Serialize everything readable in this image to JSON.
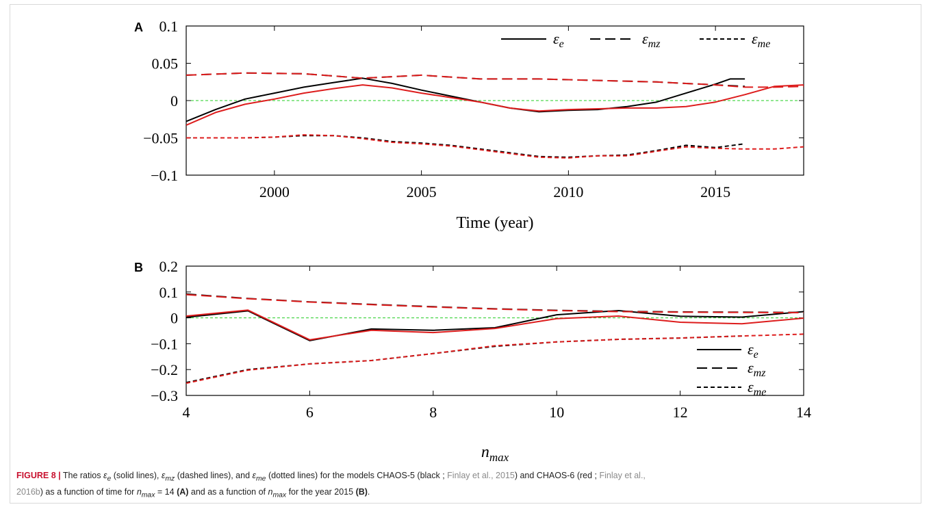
{
  "colors": {
    "chaos5": "#000000",
    "chaos6": "#dd1c1c",
    "zero_line": "#22cc22",
    "figure_label": "#c8102e",
    "reference": "#8a8a8a"
  },
  "chart_data": [
    {
      "panel": "A",
      "type": "line",
      "xlabel": "Time (year)",
      "ylabel": "",
      "xlim": [
        1997,
        2018
      ],
      "ylim": [
        -0.1,
        0.1
      ],
      "xticks": [
        2000,
        2005,
        2010,
        2015
      ],
      "yticks": [
        0.1,
        0.05,
        0,
        -0.05,
        -0.1
      ],
      "ytick_labels": [
        "0.1",
        "0.05",
        "0",
        "−0.05",
        "−0.1"
      ],
      "legend_position": "top-right",
      "legend": [
        "ε_e",
        "ε_mz",
        "ε_me"
      ],
      "reference_line": 0,
      "series": [
        {
          "model": "CHAOS-5",
          "kind": "solid",
          "color": "#000000",
          "x": [
            1997,
            1998,
            1999,
            2000,
            2001,
            2002,
            2003,
            2004,
            2005,
            2006,
            2007,
            2008,
            2009,
            2010,
            2011,
            2012,
            2013,
            2014,
            2015,
            2015.5,
            2016
          ],
          "y": [
            -0.028,
            -0.012,
            0.002,
            0.01,
            0.018,
            0.024,
            0.03,
            0.023,
            0.014,
            0.006,
            -0.002,
            -0.01,
            -0.015,
            -0.013,
            -0.012,
            -0.008,
            -0.002,
            0.01,
            0.022,
            0.029,
            0.029
          ]
        },
        {
          "model": "CHAOS-6",
          "kind": "solid",
          "color": "#dd1c1c",
          "x": [
            1997,
            1998,
            1999,
            2000,
            2001,
            2002,
            2003,
            2004,
            2005,
            2006,
            2007,
            2008,
            2009,
            2010,
            2011,
            2012,
            2013,
            2014,
            2015,
            2016,
            2017,
            2018
          ],
          "y": [
            -0.033,
            -0.016,
            -0.005,
            0.002,
            0.01,
            0.016,
            0.021,
            0.017,
            0.01,
            0.004,
            -0.002,
            -0.01,
            -0.014,
            -0.012,
            -0.011,
            -0.01,
            -0.01,
            -0.008,
            -0.002,
            0.008,
            0.019,
            0.021
          ]
        },
        {
          "model": "CHAOS-5",
          "kind": "dashed",
          "color": "#000000",
          "x": [
            1997,
            1999,
            2001,
            2003,
            2005,
            2007,
            2009,
            2011,
            2013,
            2015,
            2016
          ],
          "y": [
            0.034,
            0.037,
            0.036,
            0.03,
            0.034,
            0.029,
            0.029,
            0.027,
            0.025,
            0.021,
            0.019
          ]
        },
        {
          "model": "CHAOS-6",
          "kind": "dashed",
          "color": "#dd1c1c",
          "x": [
            1997,
            1999,
            2001,
            2003,
            2005,
            2007,
            2009,
            2011,
            2013,
            2015,
            2016,
            2017,
            2018
          ],
          "y": [
            0.034,
            0.037,
            0.036,
            0.03,
            0.034,
            0.029,
            0.029,
            0.027,
            0.025,
            0.021,
            0.018,
            0.018,
            0.019
          ]
        },
        {
          "model": "CHAOS-5",
          "kind": "dotted",
          "color": "#000000",
          "x": [
            1997,
            1999,
            2000,
            2001,
            2002,
            2003,
            2004,
            2005,
            2006,
            2007,
            2008,
            2009,
            2010,
            2011,
            2012,
            2013,
            2014,
            2015,
            2016
          ],
          "y": [
            -0.05,
            -0.05,
            -0.049,
            -0.047,
            -0.047,
            -0.05,
            -0.055,
            -0.057,
            -0.06,
            -0.065,
            -0.07,
            -0.075,
            -0.076,
            -0.074,
            -0.073,
            -0.067,
            -0.06,
            -0.063,
            -0.058
          ]
        },
        {
          "model": "CHAOS-6",
          "kind": "dotted",
          "color": "#dd1c1c",
          "x": [
            1997,
            1999,
            2000,
            2001,
            2002,
            2003,
            2004,
            2005,
            2006,
            2007,
            2008,
            2009,
            2010,
            2011,
            2012,
            2013,
            2014,
            2015,
            2016,
            2017,
            2018
          ],
          "y": [
            -0.05,
            -0.05,
            -0.049,
            -0.046,
            -0.047,
            -0.051,
            -0.056,
            -0.058,
            -0.061,
            -0.066,
            -0.071,
            -0.076,
            -0.077,
            -0.074,
            -0.074,
            -0.068,
            -0.062,
            -0.064,
            -0.065,
            -0.065,
            -0.062
          ]
        }
      ]
    },
    {
      "panel": "B",
      "type": "line",
      "xlabel": "n_max",
      "ylabel": "",
      "xlim": [
        4,
        14
      ],
      "ylim": [
        -0.3,
        0.2
      ],
      "xticks": [
        4,
        6,
        8,
        10,
        12,
        14
      ],
      "yticks": [
        0.2,
        0.1,
        0,
        -0.1,
        -0.2,
        -0.3
      ],
      "ytick_labels": [
        "0.2",
        "0.1",
        "0",
        "−0.1",
        "−0.2",
        "−0.3"
      ],
      "legend_position": "bottom-right",
      "legend": [
        "ε_e",
        "ε_mz",
        "ε_me"
      ],
      "reference_line": 0,
      "series": [
        {
          "model": "CHAOS-5",
          "kind": "solid",
          "color": "#000000",
          "x": [
            4,
            5,
            6,
            7,
            8,
            9,
            10,
            11,
            12,
            13,
            14
          ],
          "y": [
            0.002,
            0.027,
            -0.088,
            -0.043,
            -0.048,
            -0.038,
            0.012,
            0.028,
            0.006,
            0.003,
            0.024
          ]
        },
        {
          "model": "CHAOS-6",
          "kind": "solid",
          "color": "#dd1c1c",
          "x": [
            4,
            5,
            6,
            7,
            8,
            9,
            10,
            11,
            12,
            13,
            14
          ],
          "y": [
            0.007,
            0.03,
            -0.085,
            -0.048,
            -0.057,
            -0.041,
            -0.003,
            0.007,
            -0.017,
            -0.023,
            -0.001
          ]
        },
        {
          "model": "CHAOS-5",
          "kind": "dashed",
          "color": "#000000",
          "x": [
            4,
            5,
            6,
            7,
            8,
            9,
            10,
            11,
            12,
            13,
            14
          ],
          "y": [
            0.092,
            0.075,
            0.062,
            0.052,
            0.043,
            0.035,
            0.029,
            0.025,
            0.023,
            0.022,
            0.021
          ]
        },
        {
          "model": "CHAOS-6",
          "kind": "dashed",
          "color": "#dd1c1c",
          "x": [
            4,
            5,
            6,
            7,
            8,
            9,
            10,
            11,
            12,
            13,
            14
          ],
          "y": [
            0.09,
            0.074,
            0.061,
            0.051,
            0.042,
            0.034,
            0.028,
            0.024,
            0.022,
            0.021,
            0.02
          ]
        },
        {
          "model": "CHAOS-5",
          "kind": "dotted",
          "color": "#000000",
          "x": [
            4,
            5,
            6,
            7,
            8,
            9,
            10,
            11,
            12,
            13
          ],
          "y": [
            -0.25,
            -0.2,
            -0.178,
            -0.165,
            -0.138,
            -0.11,
            -0.093,
            -0.083,
            -0.078,
            -0.07
          ]
        },
        {
          "model": "CHAOS-6",
          "kind": "dotted",
          "color": "#dd1c1c",
          "x": [
            4,
            5,
            6,
            7,
            8,
            9,
            10,
            11,
            12,
            13,
            14
          ],
          "y": [
            -0.253,
            -0.202,
            -0.178,
            -0.165,
            -0.138,
            -0.108,
            -0.093,
            -0.083,
            -0.078,
            -0.07,
            -0.063
          ]
        }
      ]
    }
  ],
  "caption": {
    "label": "FIGURE 8 |",
    "t1": " The ratios ",
    "sym_e": "ε",
    "sub_e": "e",
    "t2": " (solid lines), ",
    "sym_mz": "ε",
    "sub_mz": "mz",
    "t3": " (dashed lines), and ",
    "sym_me": "ε",
    "sub_me": "me",
    "t4": " (dotted lines) for the models CHAOS-5 (black ; ",
    "ref1": "Finlay et al., 2015",
    "t5": ") and CHAOS-6 (red ; ",
    "ref2a": "Finlay et al.,",
    "ref2b": "2016b",
    "t6": ") as a function of time for ",
    "nmax1": "n",
    "nmax1_sub": "max",
    "t7": " = 14 ",
    "panelA": "(A)",
    "t8": " and as a function of ",
    "nmax2": "n",
    "nmax2_sub": "max",
    "t9": " for the year 2015 ",
    "panelB": "(B)",
    "t10": "."
  }
}
